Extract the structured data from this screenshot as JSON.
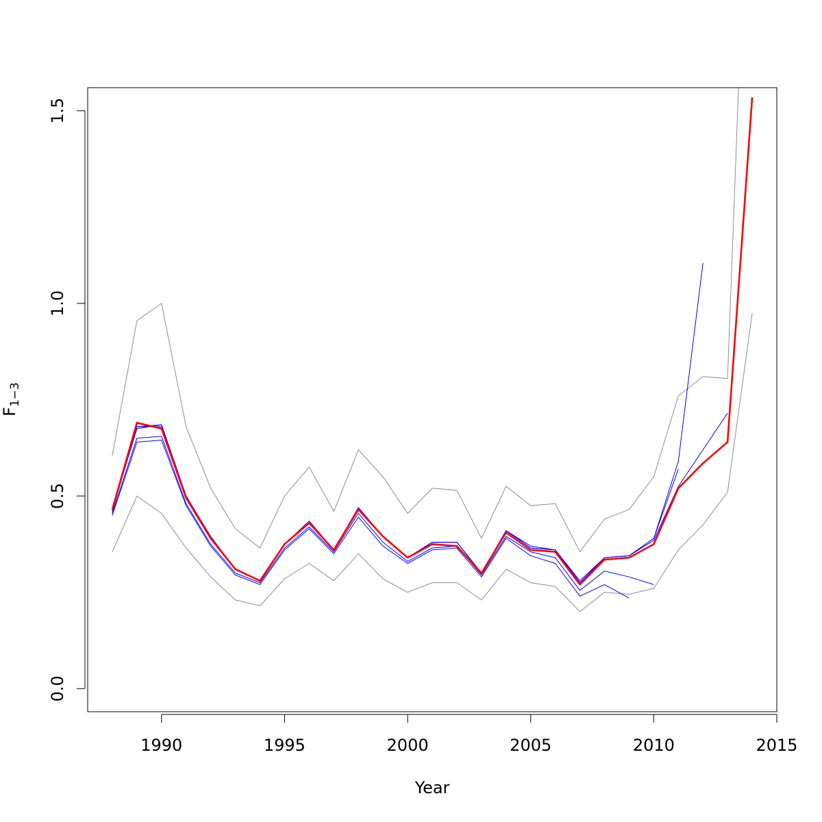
{
  "chart_data": {
    "type": "line",
    "xlabel": "Year",
    "ylabel": "F",
    "ylabel_subscript": "1−3",
    "xlim": [
      1987,
      2015
    ],
    "ylim": [
      -0.06,
      1.56
    ],
    "x_ticks": [
      1990,
      1995,
      2000,
      2005,
      2010,
      2015
    ],
    "x_tick_labels": [
      "1990",
      "1995",
      "2000",
      "2005",
      "2010",
      "2015"
    ],
    "y_ticks": [
      0.0,
      0.5,
      1.0,
      1.5
    ],
    "y_tick_labels": [
      "0.0",
      "0.5",
      "1.0",
      "1.5"
    ],
    "grid": false,
    "colors": {
      "estimate": "#ff0000",
      "retro": "#0000ff",
      "bounds": "#8c8c8c"
    },
    "series": [
      {
        "role": "estimate",
        "color": "#ff0000",
        "width": 2.6,
        "x": [
          1988,
          1989,
          1990,
          1991,
          1992,
          1993,
          1994,
          1995,
          1996,
          1997,
          1998,
          1999,
          2000,
          2001,
          2002,
          2003,
          2004,
          2005,
          2006,
          2007,
          2008,
          2009,
          2010,
          2011,
          2012,
          2013,
          2014
        ],
        "y": [
          0.465,
          0.69,
          0.675,
          0.495,
          0.39,
          0.31,
          0.28,
          0.375,
          0.43,
          0.36,
          0.465,
          0.395,
          0.34,
          0.375,
          0.37,
          0.3,
          0.405,
          0.36,
          0.355,
          0.27,
          0.335,
          0.34,
          0.375,
          0.52,
          0.585,
          0.64,
          1.535
        ]
      },
      {
        "role": "upper",
        "color": "#8c8c8c",
        "width": 1,
        "x": [
          1988,
          1989,
          1990,
          1991,
          1992,
          1993,
          1994,
          1995,
          1996,
          1997,
          1998,
          1999,
          2000,
          2001,
          2002,
          2003,
          2004,
          2005,
          2006,
          2007,
          2008,
          2009,
          2010,
          2011,
          2012,
          2013,
          2014
        ],
        "y": [
          0.605,
          0.955,
          1.0,
          0.68,
          0.52,
          0.415,
          0.365,
          0.5,
          0.575,
          0.46,
          0.62,
          0.55,
          0.455,
          0.52,
          0.515,
          0.39,
          0.525,
          0.475,
          0.48,
          0.355,
          0.44,
          0.465,
          0.55,
          0.76,
          0.81,
          0.805,
          2.5
        ]
      },
      {
        "role": "lower",
        "color": "#8c8c8c",
        "width": 1,
        "x": [
          1988,
          1989,
          1990,
          1991,
          1992,
          1993,
          1994,
          1995,
          1996,
          1997,
          1998,
          1999,
          2000,
          2001,
          2002,
          2003,
          2004,
          2005,
          2006,
          2007,
          2008,
          2009,
          2010,
          2011,
          2012,
          2013,
          2014
        ],
        "y": [
          0.355,
          0.5,
          0.455,
          0.365,
          0.29,
          0.23,
          0.215,
          0.285,
          0.325,
          0.28,
          0.35,
          0.285,
          0.25,
          0.275,
          0.275,
          0.23,
          0.31,
          0.275,
          0.265,
          0.2,
          0.25,
          0.245,
          0.26,
          0.36,
          0.425,
          0.51,
          0.975
        ]
      },
      {
        "role": "retro",
        "color": "#0000ff",
        "width": 1,
        "x": [
          1988,
          1989,
          1990,
          1991,
          1992,
          1993,
          1994,
          1995,
          1996,
          1997,
          1998,
          1999,
          2000,
          2001,
          2002,
          2003,
          2004,
          2005,
          2006,
          2007,
          2008,
          2009
        ],
        "y": [
          0.45,
          0.64,
          0.645,
          0.475,
          0.37,
          0.295,
          0.27,
          0.36,
          0.415,
          0.35,
          0.445,
          0.37,
          0.325,
          0.36,
          0.365,
          0.29,
          0.39,
          0.345,
          0.325,
          0.24,
          0.27,
          0.235
        ]
      },
      {
        "role": "retro",
        "color": "#0000ff",
        "width": 1,
        "x": [
          1988,
          1989,
          1990,
          1991,
          1992,
          1993,
          1994,
          1995,
          1996,
          1997,
          1998,
          1999,
          2000,
          2001,
          2002,
          2003,
          2004,
          2005,
          2006,
          2007,
          2008,
          2009,
          2010
        ],
        "y": [
          0.455,
          0.65,
          0.655,
          0.48,
          0.375,
          0.3,
          0.275,
          0.365,
          0.42,
          0.355,
          0.455,
          0.38,
          0.33,
          0.365,
          0.37,
          0.295,
          0.395,
          0.355,
          0.34,
          0.255,
          0.305,
          0.29,
          0.27
        ]
      },
      {
        "role": "retro",
        "color": "#0000ff",
        "width": 1,
        "x": [
          1988,
          1989,
          1990,
          1991,
          1992,
          1993,
          1994,
          1995,
          1996,
          1997,
          1998,
          1999,
          2000,
          2001,
          2002,
          2003,
          2004,
          2005,
          2006,
          2007,
          2008,
          2009,
          2010,
          2011
        ],
        "y": [
          0.46,
          0.68,
          0.68,
          0.5,
          0.39,
          0.31,
          0.28,
          0.375,
          0.43,
          0.36,
          0.465,
          0.395,
          0.34,
          0.38,
          0.38,
          0.3,
          0.41,
          0.37,
          0.36,
          0.275,
          0.34,
          0.345,
          0.39,
          0.57
        ]
      },
      {
        "role": "retro",
        "color": "#0000ff",
        "width": 1,
        "x": [
          1988,
          1989,
          1990,
          1991,
          1992,
          1993,
          1994,
          1995,
          1996,
          1997,
          1998,
          1999,
          2000,
          2001,
          2002,
          2003,
          2004,
          2005,
          2006,
          2007,
          2008,
          2009,
          2010,
          2011,
          2012
        ],
        "y": [
          0.465,
          0.675,
          0.685,
          0.5,
          0.39,
          0.31,
          0.28,
          0.375,
          0.435,
          0.36,
          0.47,
          0.395,
          0.34,
          0.38,
          0.38,
          0.3,
          0.41,
          0.365,
          0.36,
          0.28,
          0.34,
          0.345,
          0.39,
          0.59,
          1.105
        ]
      },
      {
        "role": "retro",
        "color": "#0000ff",
        "width": 1,
        "x": [
          1988,
          1989,
          1990,
          1991,
          1992,
          1993,
          1994,
          1995,
          1996,
          1997,
          1998,
          1999,
          2000,
          2001,
          2002,
          2003,
          2004,
          2005,
          2006,
          2007,
          2008,
          2009,
          2010,
          2011,
          2012,
          2013
        ],
        "y": [
          0.465,
          0.68,
          0.685,
          0.5,
          0.395,
          0.31,
          0.28,
          0.375,
          0.43,
          0.36,
          0.47,
          0.395,
          0.34,
          0.38,
          0.38,
          0.3,
          0.41,
          0.365,
          0.36,
          0.275,
          0.34,
          0.345,
          0.385,
          0.525,
          0.62,
          0.715
        ]
      }
    ]
  }
}
